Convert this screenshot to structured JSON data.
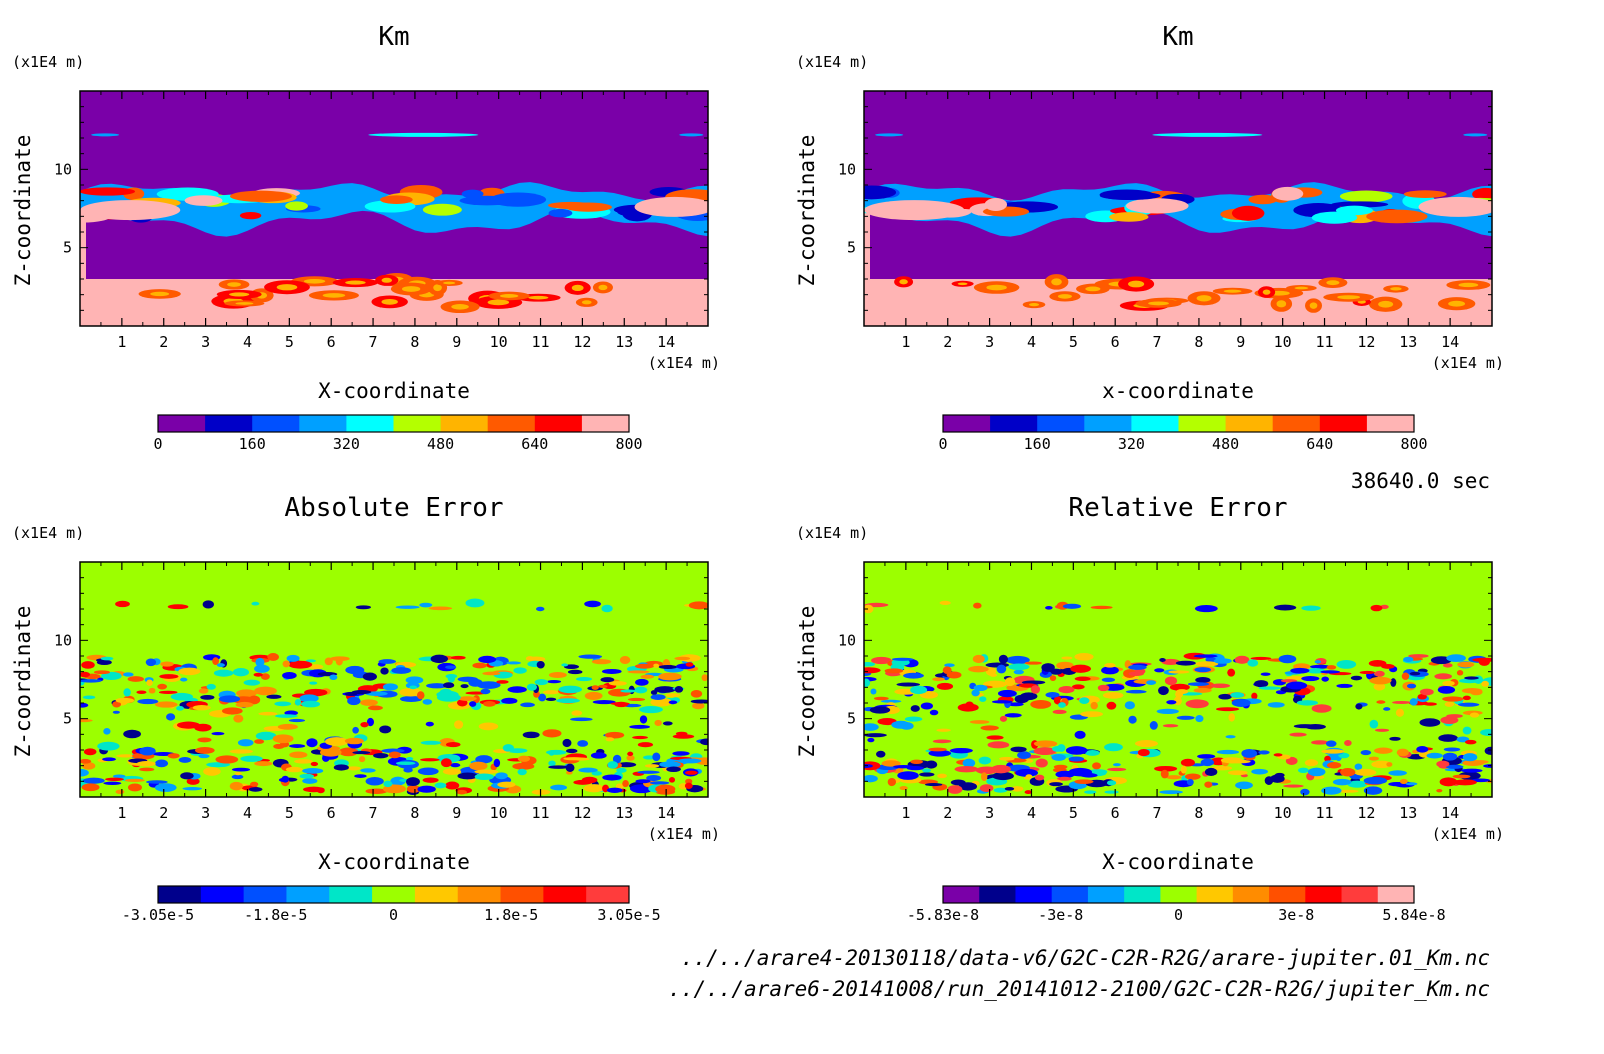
{
  "figure": {
    "time_label": "38640.0 sec",
    "file_paths": [
      "../../arare4-20130118/data-v6/G2C-C2R-R2G/arare-jupiter.01_Km.nc",
      "../../arare6-20141008/run_20141012-2100/G2C-C2R-R2G/jupiter_Km.nc"
    ],
    "colors": {
      "background_top": "#7a00a8",
      "background_bottom": "#9cff00",
      "axis": "#000000"
    }
  },
  "chart_data": [
    {
      "type": "heatmap",
      "title": "Km",
      "xlabel": "X-coordinate",
      "ylabel": "Z-coordinate",
      "x_unit": "(x1E4 m)",
      "y_unit": "(x1E4 m)",
      "xlim": [
        0,
        15
      ],
      "ylim": [
        0,
        15
      ],
      "xticks": [
        "1",
        "2",
        "3",
        "4",
        "5",
        "6",
        "7",
        "8",
        "9",
        "10",
        "11",
        "12",
        "13",
        "14"
      ],
      "yticks": [
        "5",
        "10"
      ],
      "colorbar": {
        "levels": [
          "0",
          "160",
          "320",
          "480",
          "640",
          "800"
        ],
        "colors": [
          "#7a00a8",
          "#0000c8",
          "#0050ff",
          "#00a0ff",
          "#00ffff",
          "#b4ff00",
          "#ffb400",
          "#ff5a00",
          "#ff0000",
          "#ffb4b4"
        ]
      },
      "grid": false
    },
    {
      "type": "heatmap",
      "title": "Km",
      "xlabel": "x-coordinate",
      "ylabel": "Z-coordinate",
      "x_unit": "(x1E4 m)",
      "y_unit": "(x1E4 m)",
      "xlim": [
        0,
        15
      ],
      "ylim": [
        0,
        15
      ],
      "xticks": [
        "1",
        "2",
        "3",
        "4",
        "5",
        "6",
        "7",
        "8",
        "9",
        "10",
        "11",
        "12",
        "13",
        "14"
      ],
      "yticks": [
        "5",
        "10"
      ],
      "colorbar": {
        "levels": [
          "0",
          "160",
          "320",
          "480",
          "640",
          "800"
        ],
        "colors": [
          "#7a00a8",
          "#0000c8",
          "#0050ff",
          "#00a0ff",
          "#00ffff",
          "#b4ff00",
          "#ffb400",
          "#ff5a00",
          "#ff0000",
          "#ffb4b4"
        ]
      },
      "grid": false
    },
    {
      "type": "heatmap",
      "title": "Absolute Error",
      "xlabel": "X-coordinate",
      "ylabel": "Z-coordinate",
      "x_unit": "(x1E4 m)",
      "y_unit": "(x1E4 m)",
      "xlim": [
        0,
        15
      ],
      "ylim": [
        0,
        15
      ],
      "xticks": [
        "1",
        "2",
        "3",
        "4",
        "5",
        "6",
        "7",
        "8",
        "9",
        "10",
        "11",
        "12",
        "13",
        "14"
      ],
      "yticks": [
        "5",
        "10"
      ],
      "colorbar": {
        "levels": [
          "-3.05e-5",
          "-1.8e-5",
          "0",
          "1.8e-5",
          "3.05e-5"
        ],
        "colors": [
          "#00008c",
          "#0000ff",
          "#0050ff",
          "#00a0ff",
          "#00e6c8",
          "#9cff00",
          "#ffc800",
          "#ff8c00",
          "#ff5000",
          "#ff0000",
          "#ff3c3c"
        ]
      },
      "grid": false
    },
    {
      "type": "heatmap",
      "title": "Relative Error",
      "xlabel": "X-coordinate",
      "ylabel": "Z-coordinate",
      "x_unit": "(x1E4 m)",
      "y_unit": "(x1E4 m)",
      "xlim": [
        0,
        15
      ],
      "ylim": [
        0,
        15
      ],
      "xticks": [
        "1",
        "2",
        "3",
        "4",
        "5",
        "6",
        "7",
        "8",
        "9",
        "10",
        "11",
        "12",
        "13",
        "14"
      ],
      "yticks": [
        "5",
        "10"
      ],
      "colorbar": {
        "levels": [
          "-5.83e-8",
          "-3e-8",
          "0",
          "3e-8",
          "5.84e-8"
        ],
        "colors": [
          "#7a00a8",
          "#00008c",
          "#0000ff",
          "#0050ff",
          "#00a0ff",
          "#00e6c8",
          "#9cff00",
          "#ffc800",
          "#ff8c00",
          "#ff5000",
          "#ff0000",
          "#ff3c3c",
          "#ffb4b4"
        ]
      },
      "grid": false
    }
  ]
}
